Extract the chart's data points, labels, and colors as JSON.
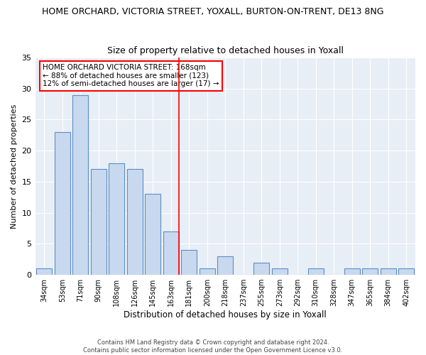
{
  "title": "HOME ORCHARD, VICTORIA STREET, YOXALL, BURTON-ON-TRENT, DE13 8NG",
  "subtitle": "Size of property relative to detached houses in Yoxall",
  "xlabel": "Distribution of detached houses by size in Yoxall",
  "ylabel": "Number of detached properties",
  "categories": [
    "34sqm",
    "53sqm",
    "71sqm",
    "90sqm",
    "108sqm",
    "126sqm",
    "145sqm",
    "163sqm",
    "181sqm",
    "200sqm",
    "218sqm",
    "237sqm",
    "255sqm",
    "273sqm",
    "292sqm",
    "310sqm",
    "328sqm",
    "347sqm",
    "365sqm",
    "384sqm",
    "402sqm"
  ],
  "values": [
    1,
    23,
    29,
    17,
    18,
    17,
    13,
    7,
    4,
    1,
    3,
    0,
    2,
    1,
    0,
    1,
    0,
    1,
    1,
    1,
    1
  ],
  "bar_color": "#c8d9ef",
  "bar_edge_color": "#5b8ec4",
  "background_color": "#e8eef6",
  "grid_color": "#ffffff",
  "red_line_index": 7,
  "ylim": [
    0,
    35
  ],
  "yticks": [
    0,
    5,
    10,
    15,
    20,
    25,
    30,
    35
  ],
  "annotation_lines": [
    "HOME ORCHARD VICTORIA STREET: 168sqm",
    "← 88% of detached houses are smaller (123)",
    "12% of semi-detached houses are larger (17) →"
  ],
  "footer_line1": "Contains HM Land Registry data © Crown copyright and database right 2024.",
  "footer_line2": "Contains public sector information licensed under the Open Government Licence v3.0."
}
